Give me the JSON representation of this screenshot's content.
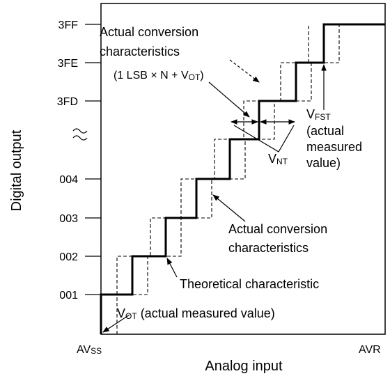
{
  "y_axis": {
    "label": "Digital output",
    "ticks": [
      "3FF",
      "3FE",
      "3FD",
      "004",
      "003",
      "002",
      "001"
    ]
  },
  "x_axis": {
    "label": "Analog input",
    "start": {
      "main": "AV",
      "sub": "SS"
    },
    "end": "AVR"
  },
  "annotations": {
    "upper_actual": [
      "Actual conversion",
      "characteristics"
    ],
    "formula": {
      "before": "(1 LSB × N + V",
      "sub": "OT",
      "after": ")"
    },
    "vfst": {
      "main": "V",
      "sub": "FST",
      "lines": [
        "(actual",
        "measured",
        "value)"
      ]
    },
    "vnt": {
      "main": "V",
      "sub": "NT"
    },
    "lower_actual": [
      "Actual conversion",
      "characteristics"
    ],
    "theoretical": "Theoretical characteristic",
    "vot": {
      "main": "V",
      "sub": "OT",
      "rest": " (actual measured value)"
    }
  }
}
